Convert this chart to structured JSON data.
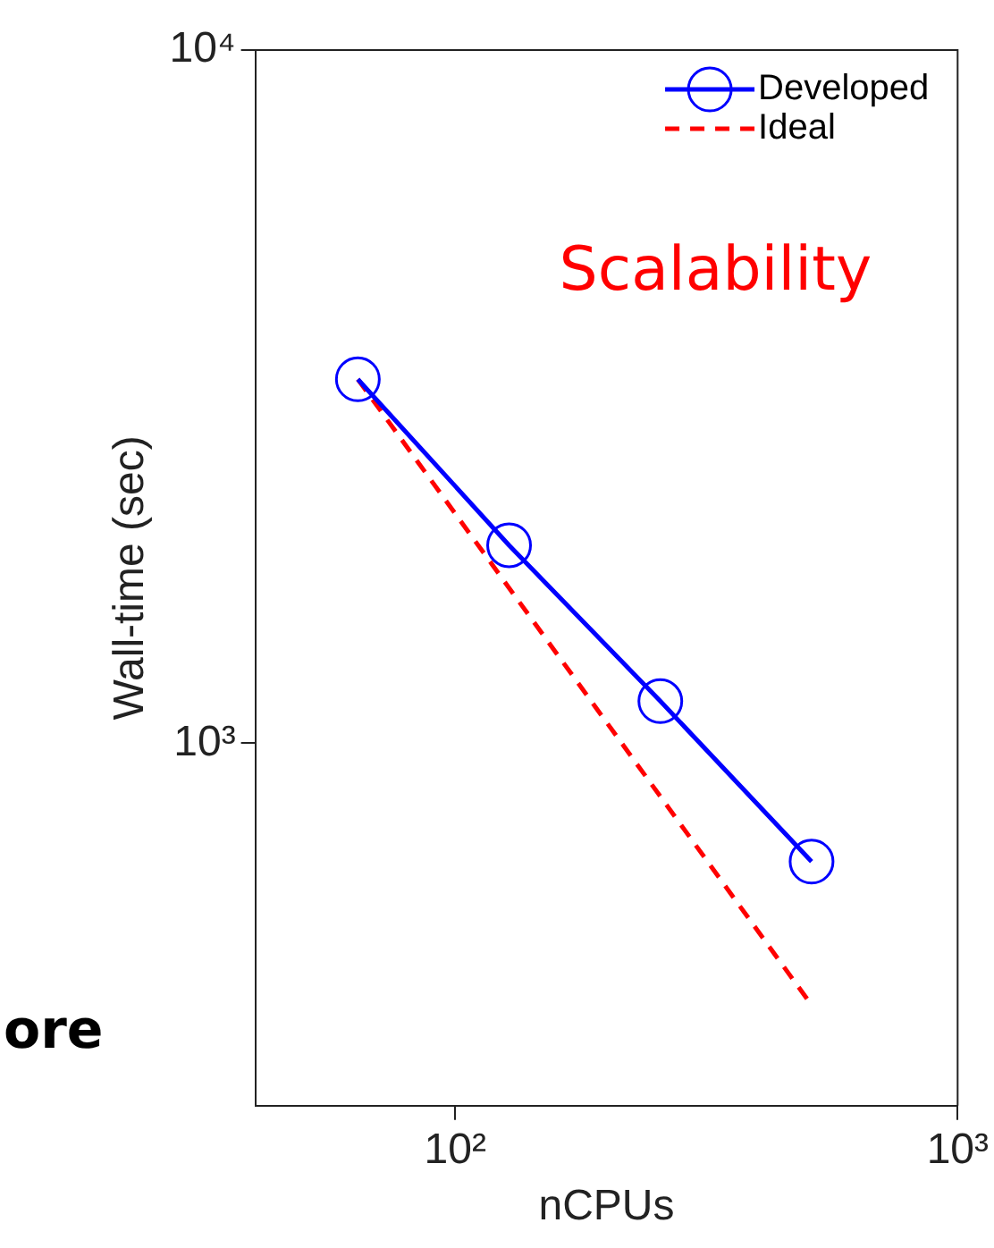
{
  "chart_data": {
    "type": "line",
    "xlabel": "nCPUs",
    "ylabel": "Wall-time (sec)",
    "log": "xy",
    "x": [
      64,
      128,
      256,
      512
    ],
    "xlim": [
      40,
      1000
    ],
    "xticks": [
      {
        "value": 100,
        "label": "10²"
      },
      {
        "value": 1000,
        "label": "10³"
      }
    ],
    "ylim": [
      300,
      10000
    ],
    "yticks": [
      {
        "value": 1000,
        "label": "10³"
      },
      {
        "value": 10000,
        "label": "10⁴"
      }
    ],
    "grid": false,
    "legend": "top right",
    "series": [
      {
        "name": "Developed",
        "color": "#0000ff",
        "values": [
          3350,
          1930,
          1150,
          675
        ],
        "marker": "circle",
        "line_style": "solid"
      },
      {
        "name": "Ideal",
        "color": "#ff0000",
        "values": [
          3350,
          1675,
          838,
          419
        ],
        "marker": "none",
        "line_style": "dashed"
      }
    ],
    "annotations": [
      "Scalability",
      "ore"
    ]
  }
}
